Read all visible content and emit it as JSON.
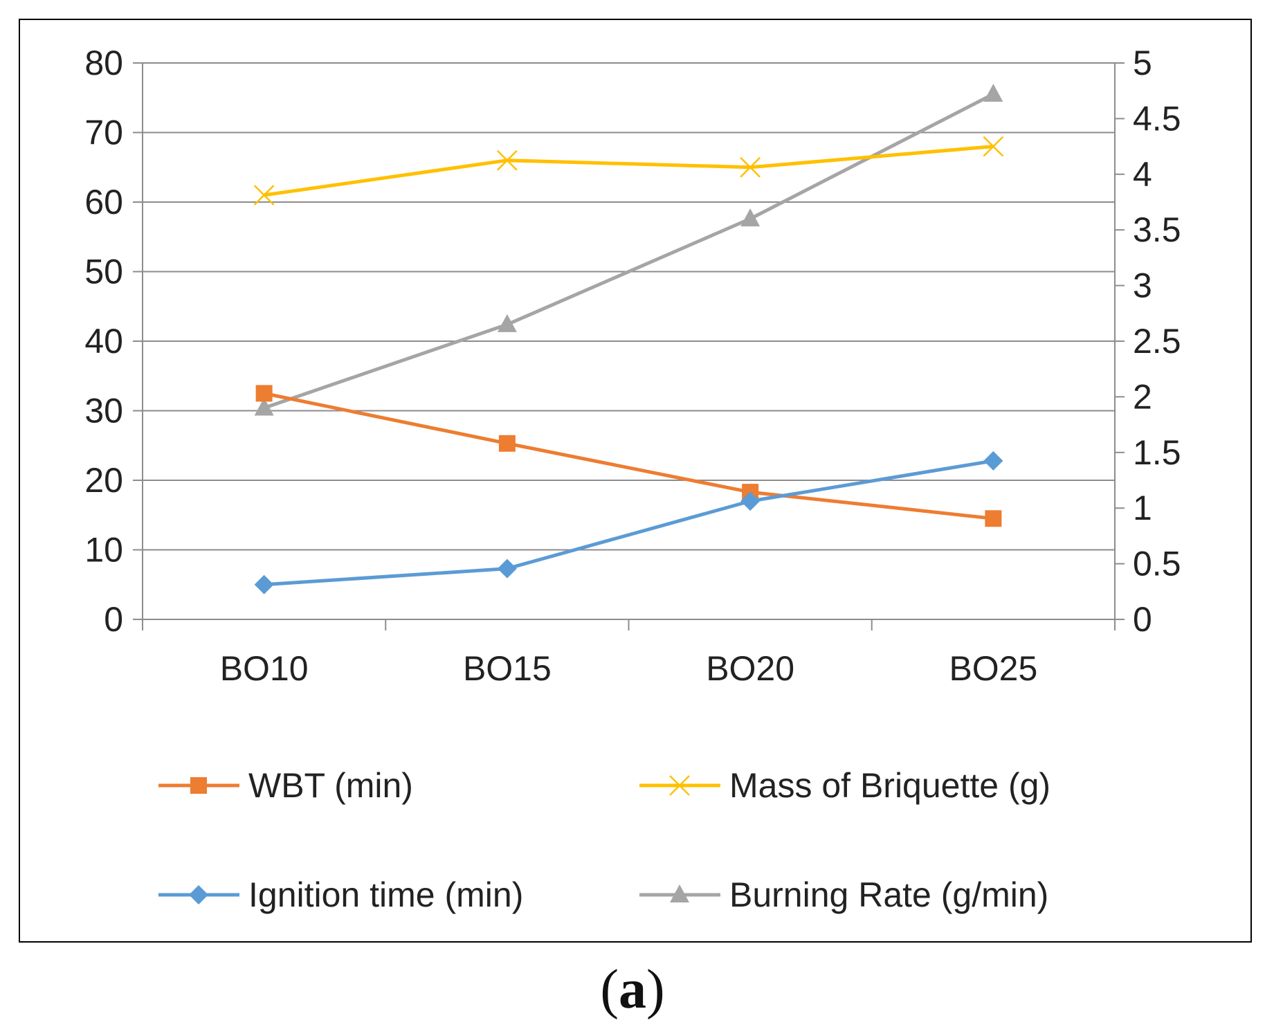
{
  "chart_data": {
    "type": "line",
    "categories": [
      "BO10",
      "BO15",
      "BO20",
      "BO25"
    ],
    "y_left": {
      "min": 0,
      "max": 80,
      "step": 10,
      "ticks": [
        "0",
        "10",
        "20",
        "30",
        "40",
        "50",
        "60",
        "70",
        "80"
      ]
    },
    "y_right": {
      "min": 0,
      "max": 5,
      "step": 0.5,
      "ticks": [
        "0",
        "0.5",
        "1",
        "1.5",
        "2",
        "2.5",
        "3",
        "3.5",
        "4",
        "4.5",
        "5"
      ]
    },
    "grid": true,
    "legend_position": "bottom",
    "series": [
      {
        "name": "WBT (min)",
        "axis": "left",
        "color": "#ED7D31",
        "marker": "square",
        "values": [
          32.5,
          25.3,
          18.3,
          14.5
        ]
      },
      {
        "name": "Mass of Briquette (g)",
        "axis": "left",
        "color": "#FFC000",
        "marker": "x",
        "values": [
          61,
          66,
          65,
          68
        ]
      },
      {
        "name": "Ignition time (min)",
        "axis": "left",
        "color": "#5B9BD5",
        "marker": "diamond",
        "values": [
          5,
          7.3,
          17,
          22.8
        ]
      },
      {
        "name": "Burning Rate (g/min)",
        "axis": "right",
        "color": "#A5A5A5",
        "marker": "triangle",
        "values": [
          1.9,
          2.65,
          3.6,
          4.72
        ]
      }
    ]
  },
  "caption": {
    "open": "(",
    "label": "a",
    "close": ")"
  }
}
